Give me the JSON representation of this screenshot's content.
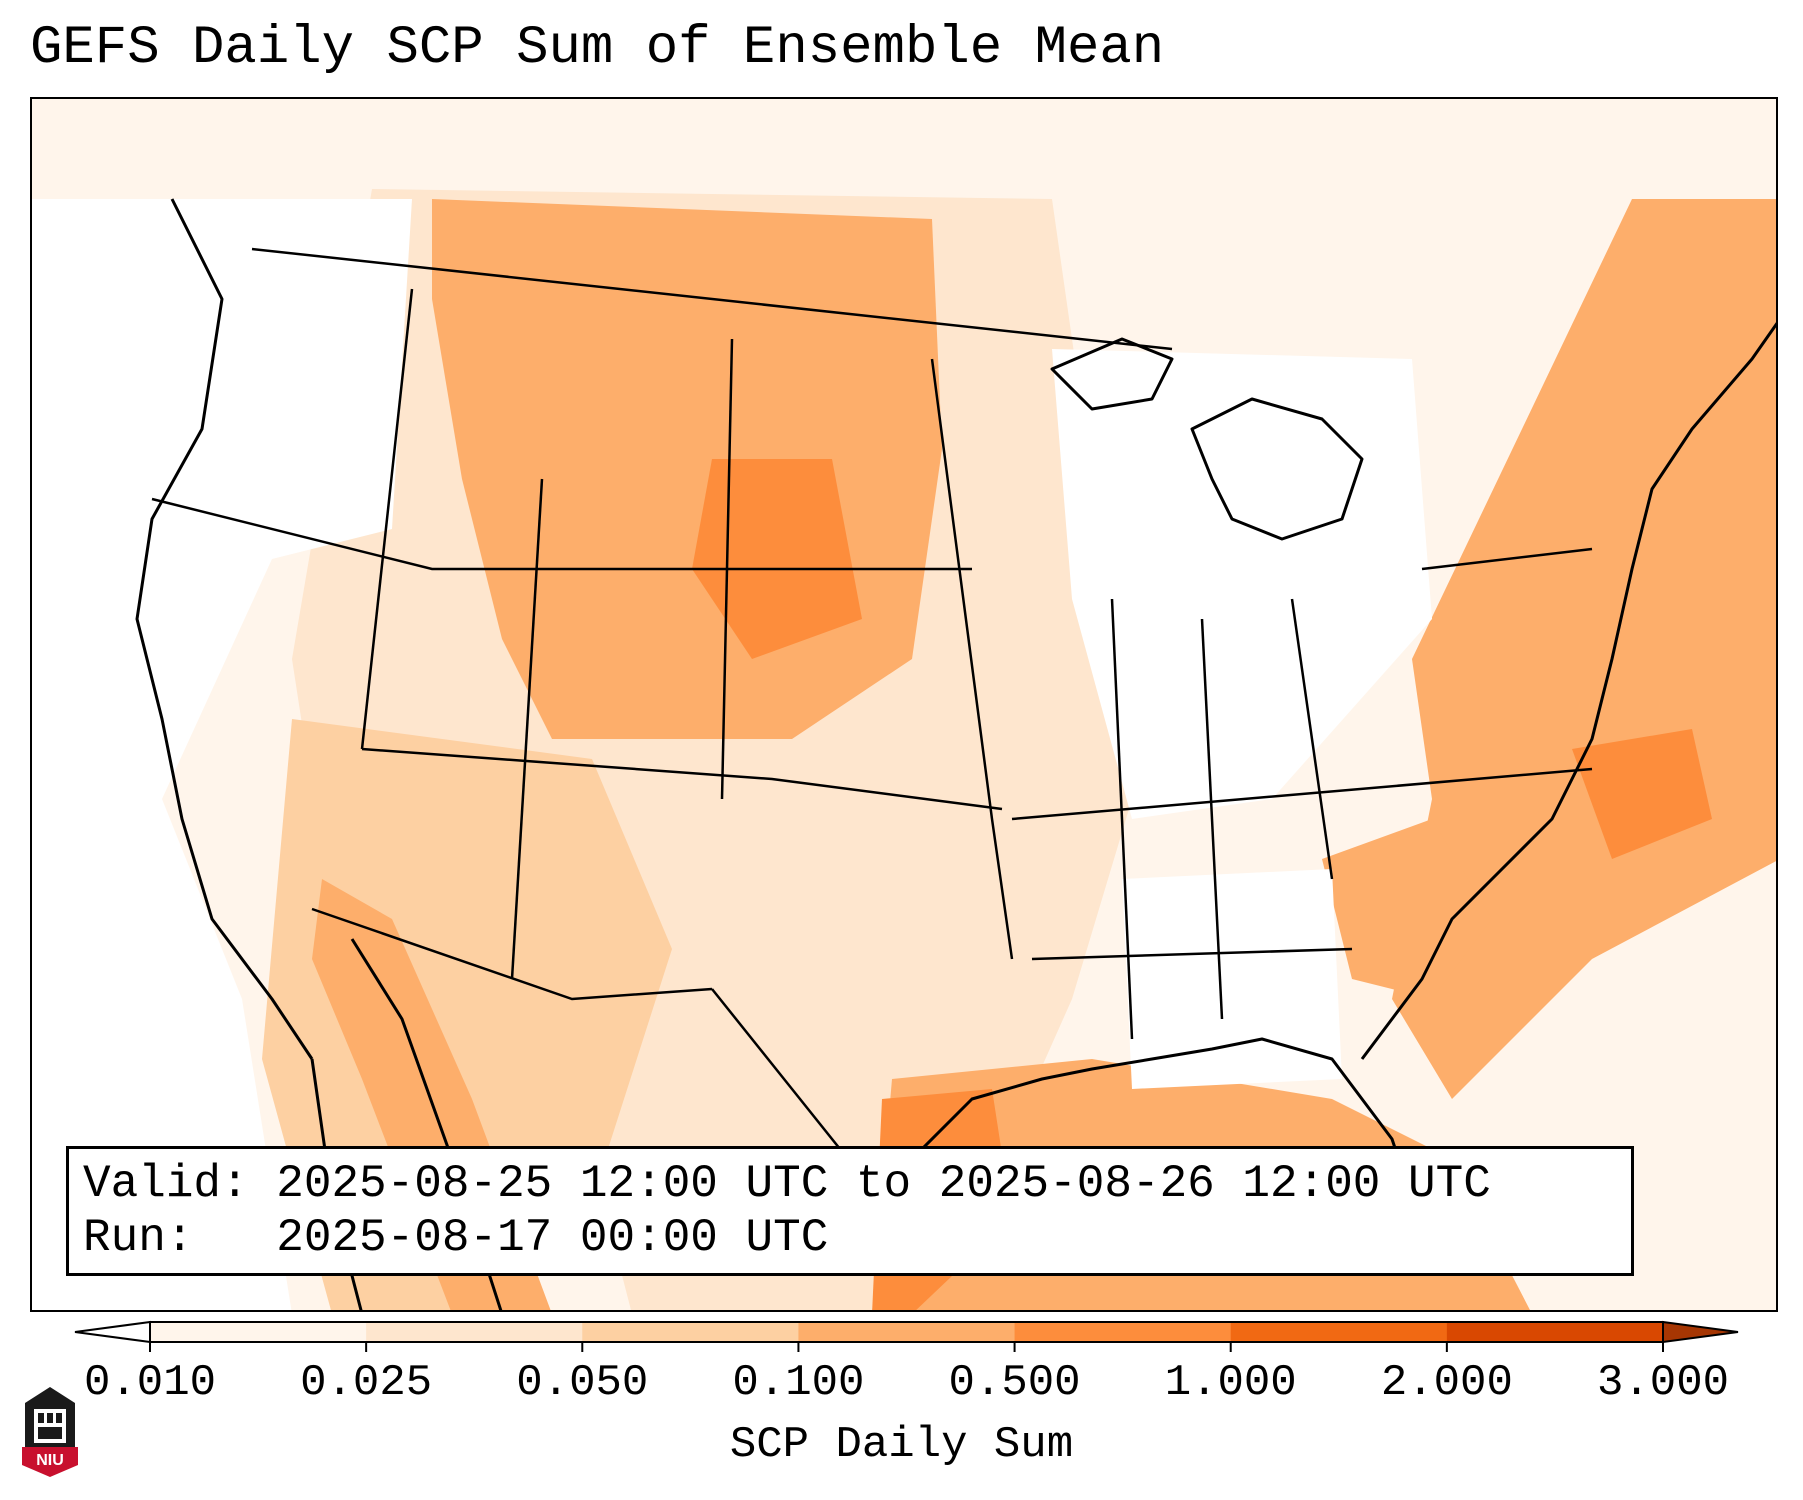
{
  "title": "GEFS Daily SCP Sum of Ensemble Mean",
  "info": {
    "valid_line": "Valid: 2025-08-25 12:00 UTC to 2025-08-26 12:00 UTC",
    "run_line": "Run:   2025-08-17 00:00 UTC"
  },
  "colorbar": {
    "label": "SCP Daily Sum",
    "ticks": [
      "0.010",
      "0.025",
      "0.050",
      "0.100",
      "0.500",
      "1.000",
      "2.000",
      "3.000"
    ],
    "colors": [
      "#fff5eb",
      "#fee6ce",
      "#fdd0a2",
      "#fdae6b",
      "#fd8d3c",
      "#f16913",
      "#d94801",
      "#a63603"
    ],
    "under_color": "#ffffff",
    "over_color": "#a63603"
  },
  "logo": {
    "text": "NIU",
    "accent_color": "#c8102e",
    "icon": "university-tower-icon"
  }
}
